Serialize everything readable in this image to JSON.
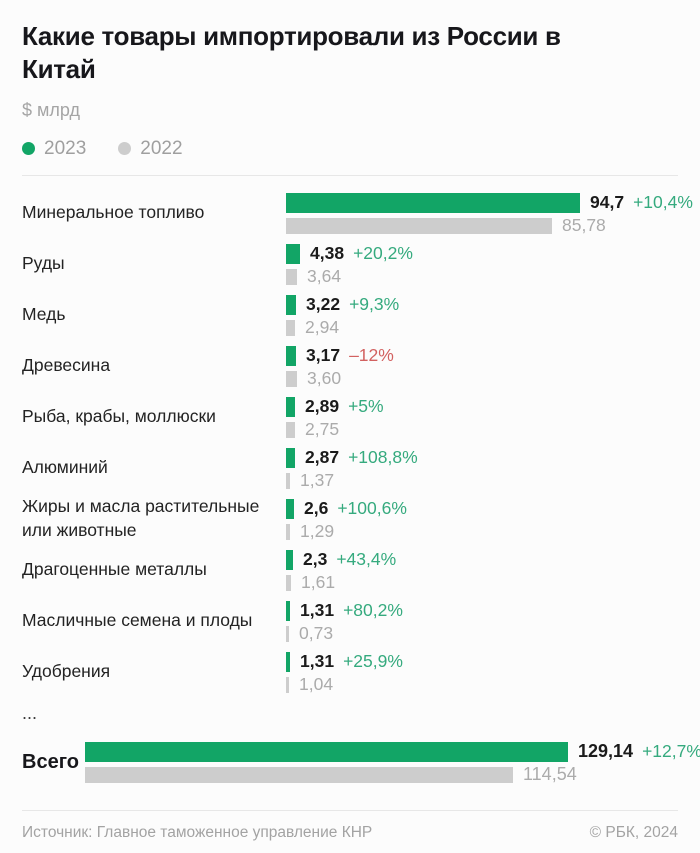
{
  "header": {
    "title": "Какие товары импортировали из России в Китай",
    "units": "$ млрд",
    "legend": [
      {
        "label": "2023",
        "color": "#12a566"
      },
      {
        "label": "2022",
        "color": "#cdcdcd"
      }
    ]
  },
  "colors": {
    "bar_2023": "#12a566",
    "bar_2022": "#cdcdcd",
    "change_positive": "#35aa7e",
    "change_negative": "#d26160",
    "value_2023_text": "#1b1b1b",
    "value_2022_text": "#ababab"
  },
  "chart_data": {
    "type": "bar",
    "orientation": "horizontal",
    "title": "Какие товары импортировали из России в Китай",
    "ylabel": "$ млрд",
    "legend": [
      "2023",
      "2022"
    ],
    "legend_position": "top-left",
    "grid": false,
    "xlim_categories": [
      0,
      100
    ],
    "xlim_total": [
      0,
      135
    ],
    "categories": [
      "Минеральное топливо",
      "Руды",
      "Медь",
      "Древесина",
      "Рыба, крабы, моллюски",
      "Алюминий",
      "Жиры и масла растительные или животные",
      "Драгоценные металлы",
      "Масличные семена и плоды",
      "Удобрения"
    ],
    "series": [
      {
        "name": "2023",
        "values": [
          94.7,
          4.38,
          3.22,
          3.17,
          2.89,
          2.87,
          2.6,
          2.3,
          1.31,
          1.31
        ]
      },
      {
        "name": "2022",
        "values": [
          85.78,
          3.64,
          2.94,
          3.6,
          2.75,
          1.37,
          1.29,
          1.61,
          0.73,
          1.04
        ]
      }
    ],
    "rows": [
      {
        "label": "Минеральное топливо",
        "v2023": "94,7",
        "change": "+10,4%",
        "v2022": "85,78"
      },
      {
        "label": "Руды",
        "v2023": "4,38",
        "change": "+20,2%",
        "v2022": "3,64"
      },
      {
        "label": "Медь",
        "v2023": "3,22",
        "change": "+9,3%",
        "v2022": "2,94"
      },
      {
        "label": "Древесина",
        "v2023": "3,17",
        "change": "–12%",
        "v2022": "3,60"
      },
      {
        "label": "Рыба, крабы, моллюски",
        "v2023": "2,89",
        "change": "+5%",
        "v2022": "2,75"
      },
      {
        "label": "Алюминий",
        "v2023": "2,87",
        "change": "+108,8%",
        "v2022": "1,37"
      },
      {
        "label": "Жиры и масла растительные или животные",
        "v2023": "2,6",
        "change": "+100,6%",
        "v2022": "1,29"
      },
      {
        "label": "Драгоценные металлы",
        "v2023": "2,3",
        "change": "+43,4%",
        "v2022": "1,61"
      },
      {
        "label": "Масличные семена и плоды",
        "v2023": "1,31",
        "change": "+80,2%",
        "v2022": "0,73"
      },
      {
        "label": "Удобрения",
        "v2023": "1,31",
        "change": "+25,9%",
        "v2022": "1,04"
      }
    ],
    "truncation_marker": "...",
    "total": {
      "label": "Всего",
      "v2023": "129,14",
      "change": "+12,7%",
      "v2022": "114,54"
    }
  },
  "footer": {
    "source": "Источник: Главное таможенное управление КНР",
    "copyright": "© РБК, 2024"
  }
}
